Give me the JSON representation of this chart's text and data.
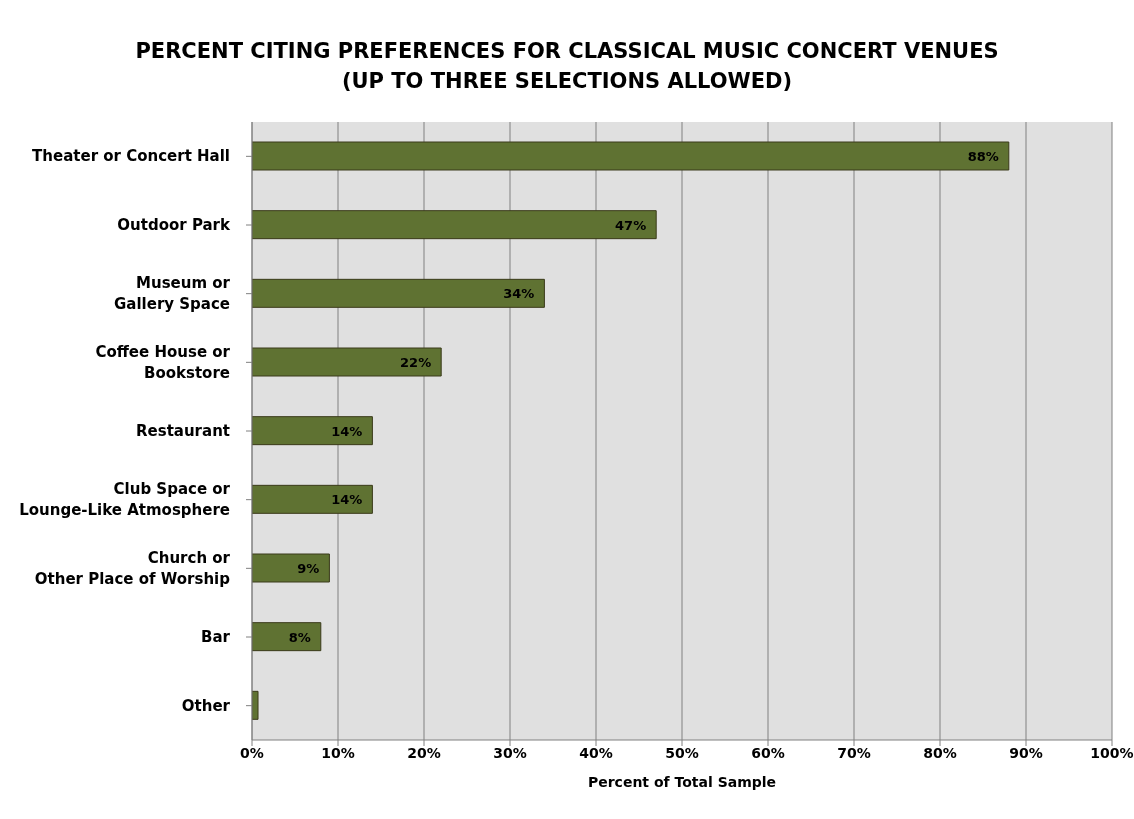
{
  "chart_data": {
    "type": "bar",
    "orientation": "horizontal",
    "title": "PERCENT CITING PREFERENCES FOR CLASSICAL MUSIC CONCERT VENUES\n(UP TO THREE SELECTIONS ALLOWED)",
    "xlabel": "Percent of Total Sample",
    "categories": [
      "Theater or Concert Hall",
      "Outdoor Park",
      "Museum or\nGallery Space",
      "Coffee House or\nBookstore",
      "Restaurant",
      "Club Space or\nLounge-Like Atmosphere",
      "Church or\nOther Place of Worship",
      "Bar",
      "Other"
    ],
    "values": [
      88,
      47,
      34,
      22,
      14,
      14,
      9,
      8,
      0.7
    ],
    "value_labels": [
      "88%",
      "47%",
      "34%",
      "22%",
      "14%",
      "14%",
      "9%",
      "8%",
      null
    ],
    "color": "#5f7232",
    "xlim": [
      0,
      100
    ],
    "xticks": [
      {
        "value": 0,
        "label": "0%"
      },
      {
        "value": 10,
        "label": "10%"
      },
      {
        "value": 20,
        "label": "20%"
      },
      {
        "value": 30,
        "label": "30%"
      },
      {
        "value": 40,
        "label": "40%"
      },
      {
        "value": 50,
        "label": "50%"
      },
      {
        "value": 60,
        "label": "60%"
      },
      {
        "value": 70,
        "label": "70%"
      },
      {
        "value": 80,
        "label": "80%"
      },
      {
        "value": 90,
        "label": "90%"
      },
      {
        "value": 100,
        "label": "100%"
      }
    ],
    "grid": "x",
    "legend": false
  }
}
